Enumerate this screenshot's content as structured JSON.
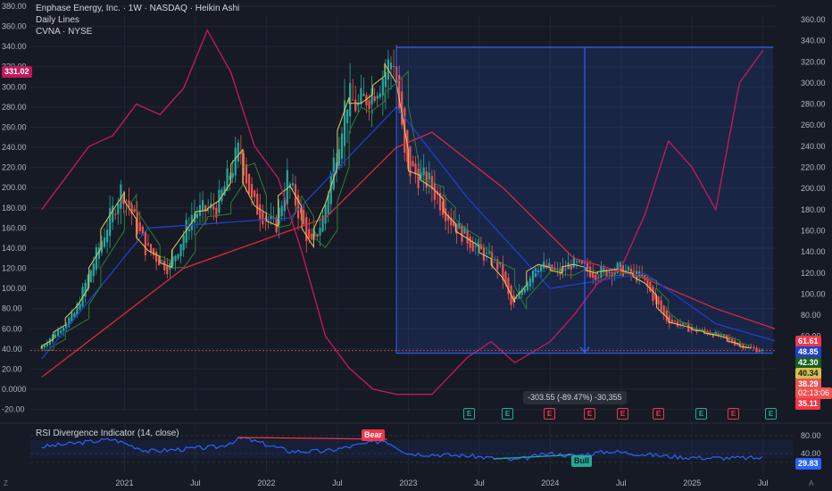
{
  "header": {
    "title": "Enphase Energy, Inc. · 1W · NASDAQ · Heikin Ashi",
    "line2": "Daily Lines",
    "line3": "CVNA · NYSE"
  },
  "badges": {
    "cvna_price": "331.02",
    "price_labels": [
      "61.61",
      "48.85",
      "42.30",
      "40.34",
      "38.29",
      "02:13:06",
      "35.11"
    ],
    "rsi_value": "29.83"
  },
  "colors": {
    "bg": "#161a25",
    "grid": "#232632",
    "up": "#26a69a",
    "down": "#ef5350",
    "cvna": "#c2185b",
    "ma_fast": "#e5c95a",
    "ma_mid": "#2e7d32",
    "ma_slow": "#1e3fd0",
    "ma_long": "#e0263b",
    "measure": "#2962ff",
    "rsi": "#2962ff",
    "bear": "#f23645",
    "bull": "#22ab94"
  },
  "measure": {
    "label": "-303.55 (-89.47%) -30,355"
  },
  "left_axis": {
    "ticks": [
      "380.00",
      "360.00",
      "340.00",
      "320.00",
      "300.00",
      "280.00",
      "260.00",
      "240.00",
      "220.00",
      "200.00",
      "180.00",
      "160.00",
      "140.00",
      "120.00",
      "100.00",
      "80.00",
      "60.00",
      "40.00",
      "20.00",
      "0.0000",
      "-20.00"
    ]
  },
  "right_axis": {
    "ticks": [
      "360.00",
      "340.00",
      "320.00",
      "300.00",
      "280.00",
      "260.00",
      "240.00",
      "220.00",
      "200.00",
      "180.00",
      "160.00",
      "140.00",
      "120.00",
      "100.00",
      "80.00",
      "60.00",
      "40.00",
      "20.00"
    ]
  },
  "rsi_panel": {
    "label": "RSI Divergence Indicator (14, close)",
    "ticks": [
      "80.00",
      "40.00",
      "20.00"
    ],
    "bear_label": "Bear",
    "bull_label": "Bull"
  },
  "x_axis": {
    "labels": [
      "2021",
      "Jul",
      "2022",
      "Jul",
      "2023",
      "Jul",
      "2024",
      "Jul",
      "2025",
      "Jul"
    ]
  },
  "earnings": {
    "marker": "E",
    "types": [
      "up",
      "up",
      "down",
      "down",
      "down",
      "down",
      "up",
      "down",
      "up"
    ]
  },
  "corner": {
    "left": "Z",
    "right": "A"
  },
  "chart_data": {
    "type": "line",
    "title": "Enphase Energy, Inc. · 1W · NASDAQ · Heikin Ashi",
    "x_range": [
      "2020-06",
      "2025-08"
    ],
    "ylim": [
      -20,
      380
    ],
    "series": [
      {
        "name": "Enphase Energy, Inc.",
        "role": "heikin-ashi close (approx)",
        "points": [
          [
            "2020-06",
            40
          ],
          [
            "2020-09",
            75
          ],
          [
            "2020-12",
            170
          ],
          [
            "2021-01",
            200
          ],
          [
            "2021-03",
            140
          ],
          [
            "2021-05",
            120
          ],
          [
            "2021-07",
            175
          ],
          [
            "2021-09",
            180
          ],
          [
            "2021-11",
            240
          ],
          [
            "2021-12",
            185
          ],
          [
            "2022-02",
            160
          ],
          [
            "2022-03",
            210
          ],
          [
            "2022-05",
            140
          ],
          [
            "2022-06",
            170
          ],
          [
            "2022-08",
            290
          ],
          [
            "2022-09",
            280
          ],
          [
            "2022-11",
            310
          ],
          [
            "2022-12",
            330
          ],
          [
            "2023-01",
            220
          ],
          [
            "2023-03",
            205
          ],
          [
            "2023-05",
            165
          ],
          [
            "2023-07",
            140
          ],
          [
            "2023-09",
            120
          ],
          [
            "2023-10",
            80
          ],
          [
            "2023-12",
            125
          ],
          [
            "2024-02",
            115
          ],
          [
            "2024-03",
            125
          ],
          [
            "2024-05",
            115
          ],
          [
            "2024-07",
            120
          ],
          [
            "2024-09",
            110
          ],
          [
            "2024-11",
            70
          ],
          [
            "2025-01",
            60
          ],
          [
            "2025-03",
            55
          ],
          [
            "2025-05",
            45
          ],
          [
            "2025-07",
            38
          ]
        ]
      },
      {
        "name": "CVNA · NYSE",
        "points": [
          [
            "2020-06",
            180
          ],
          [
            "2020-08",
            210
          ],
          [
            "2020-10",
            240
          ],
          [
            "2020-12",
            250
          ],
          [
            "2021-02",
            280
          ],
          [
            "2021-04",
            270
          ],
          [
            "2021-06",
            295
          ],
          [
            "2021-08",
            350
          ],
          [
            "2021-10",
            310
          ],
          [
            "2021-12",
            240
          ],
          [
            "2022-02",
            210
          ],
          [
            "2022-04",
            140
          ],
          [
            "2022-06",
            60
          ],
          [
            "2022-08",
            30
          ],
          [
            "2022-10",
            10
          ],
          [
            "2022-12",
            5
          ],
          [
            "2023-03",
            5
          ],
          [
            "2023-06",
            40
          ],
          [
            "2023-08",
            55
          ],
          [
            "2023-10",
            35
          ],
          [
            "2024-01",
            55
          ],
          [
            "2024-03",
            80
          ],
          [
            "2024-05",
            110
          ],
          [
            "2024-07",
            125
          ],
          [
            "2024-09",
            175
          ],
          [
            "2024-11",
            245
          ],
          [
            "2025-01",
            220
          ],
          [
            "2025-03",
            180
          ],
          [
            "2025-05",
            300
          ],
          [
            "2025-07",
            331.02
          ]
        ]
      },
      {
        "name": "",
        "role": "moving average (long, red)",
        "points": [
          [
            "2020-06",
            12
          ],
          [
            "2021-06",
            120
          ],
          [
            "2022-06",
            170
          ],
          [
            "2022-12",
            240
          ],
          [
            "2023-03",
            255
          ],
          [
            "2023-09",
            200
          ],
          [
            "2024-03",
            130
          ],
          [
            "2024-09",
            110
          ],
          [
            "2025-03",
            80
          ],
          [
            "2025-08",
            60
          ]
        ]
      },
      {
        "name": "",
        "role": "moving average (blue)",
        "points": [
          [
            "2020-06",
            30
          ],
          [
            "2021-03",
            160
          ],
          [
            "2022-03",
            170
          ],
          [
            "2022-12",
            280
          ],
          [
            "2023-06",
            190
          ],
          [
            "2024-01",
            100
          ],
          [
            "2024-09",
            115
          ],
          [
            "2025-03",
            65
          ],
          [
            "2025-08",
            48
          ]
        ]
      }
    ],
    "measurement": {
      "label": "-303.55 (-89.47%) -30,355",
      "from_price": 339.26,
      "to_price": 35.71,
      "from_date": "2022-12",
      "to_date": "2025-08"
    },
    "rsi": {
      "label": "RSI Divergence Indicator (14, close)",
      "ylim": [
        0,
        100
      ],
      "points": [
        [
          "2020-06",
          55
        ],
        [
          "2020-12",
          72
        ],
        [
          "2021-03",
          45
        ],
        [
          "2021-06",
          50
        ],
        [
          "2021-09",
          55
        ],
        [
          "2021-11",
          75
        ],
        [
          "2022-03",
          45
        ],
        [
          "2022-06",
          45
        ],
        [
          "2022-09",
          60
        ],
        [
          "2022-11",
          70
        ],
        [
          "2023-01",
          40
        ],
        [
          "2023-06",
          35
        ],
        [
          "2023-10",
          25
        ],
        [
          "2024-01",
          40
        ],
        [
          "2024-03",
          35
        ],
        [
          "2024-06",
          45
        ],
        [
          "2024-09",
          38
        ],
        [
          "2024-12",
          32
        ],
        [
          "2025-03",
          30
        ],
        [
          "2025-07",
          29.83
        ]
      ]
    }
  }
}
